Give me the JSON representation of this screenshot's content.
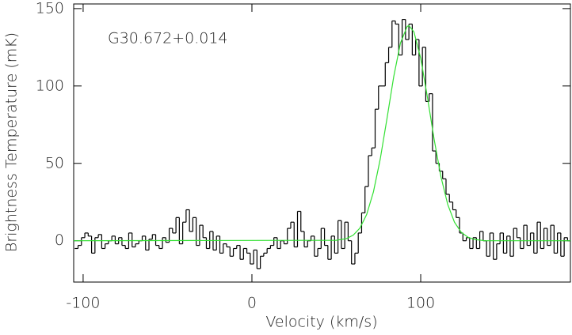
{
  "chart_data": {
    "type": "step",
    "annotation": "G30.672+0.014",
    "xlabel": "Velocity (km/s)",
    "ylabel": "Brightness Temperature (mK)",
    "xlim": [
      -105.6,
      188.7
    ],
    "ylim": [
      -26.7,
      153
    ],
    "xticks": [
      -100,
      0,
      100
    ],
    "yticks": [
      0,
      50,
      100,
      150
    ],
    "series": [
      {
        "color": "#000000",
        "x": [
          -104,
          -102,
          -100,
          -98,
          -96,
          -94,
          -92,
          -90,
          -88,
          -86,
          -84,
          -82,
          -80,
          -78,
          -76,
          -74,
          -72,
          -70,
          -68,
          -66,
          -64,
          -62,
          -60,
          -58,
          -56,
          -54,
          -52,
          -50,
          -48,
          -46,
          -44,
          -42,
          -40,
          -38,
          -36,
          -34,
          -32,
          -30,
          -28,
          -26,
          -24,
          -22,
          -20,
          -18,
          -16,
          -14,
          -12,
          -10,
          -8,
          -6,
          -4,
          -2,
          0,
          2,
          4,
          6,
          8,
          10,
          12,
          14,
          16,
          18,
          20,
          22,
          24,
          26,
          28,
          30,
          32,
          34,
          36,
          38,
          40,
          42,
          44,
          46,
          48,
          50,
          52,
          54,
          56,
          58,
          60,
          62,
          64,
          66,
          68,
          70,
          72,
          74,
          76,
          78,
          80,
          82,
          84,
          86,
          88,
          90,
          92,
          94,
          96,
          98,
          100,
          102,
          104,
          106,
          108,
          110,
          112,
          114,
          116,
          118,
          120,
          122,
          124,
          126,
          128,
          130,
          132,
          134,
          136,
          138,
          140,
          142,
          144,
          146,
          148,
          150,
          152,
          154,
          156,
          158,
          160,
          162,
          164,
          166,
          168,
          170,
          172,
          174,
          176,
          178,
          180,
          182,
          184,
          186,
          188
        ],
        "values": [
          -5,
          -3,
          2,
          5,
          3,
          -8,
          2,
          4,
          -5,
          -2,
          0,
          3,
          -2,
          2,
          -3,
          -5,
          5,
          -4,
          -2,
          0,
          3,
          -6,
          1,
          4,
          -3,
          -5,
          2,
          -1,
          8,
          5,
          15,
          -2,
          12,
          20,
          6,
          15,
          -3,
          10,
          2,
          -5,
          6,
          -6,
          3,
          -8,
          -2,
          -4,
          -10,
          -5,
          -3,
          -12,
          -5,
          -8,
          -15,
          -6,
          -18,
          -10,
          -8,
          -5,
          -3,
          2,
          -5,
          0,
          -2,
          8,
          12,
          -4,
          19,
          6,
          -4,
          0,
          3,
          -10,
          -5,
          8,
          -3,
          -12,
          3,
          -8,
          13,
          -5,
          12,
          0,
          -15,
          -8,
          5,
          18,
          35,
          55,
          60,
          85,
          100,
          100,
          115,
          125,
          142,
          140,
          120,
          143,
          130,
          140,
          120,
          130,
          100,
          125,
          90,
          95,
          58,
          50,
          45,
          40,
          30,
          25,
          20,
          15,
          5,
          0,
          2,
          -5,
          2,
          -5,
          6,
          0,
          -10,
          5,
          -12,
          -2,
          5,
          -8,
          3,
          -10,
          8,
          2,
          -5,
          10,
          -3,
          5,
          -8,
          12,
          -5,
          8,
          -3,
          10,
          -8,
          5,
          -10,
          2,
          0
        ]
      },
      {
        "color": "#33e033",
        "x": [
          -105.6,
          50,
          56,
          60,
          64,
          68,
          72,
          76,
          80,
          84,
          88,
          92,
          93,
          96,
          100,
          104,
          108,
          112,
          116,
          120,
          124,
          128,
          132,
          138,
          188.7
        ],
        "values": [
          0,
          0.3,
          1.4,
          3.6,
          8.2,
          17.0,
          31.6,
          52.6,
          78.8,
          105.9,
          127.8,
          138.5,
          139,
          134.9,
          117.9,
          92.6,
          65.3,
          41.3,
          23.5,
          12.0,
          5.5,
          2.3,
          0.8,
          0,
          0
        ]
      }
    ]
  }
}
